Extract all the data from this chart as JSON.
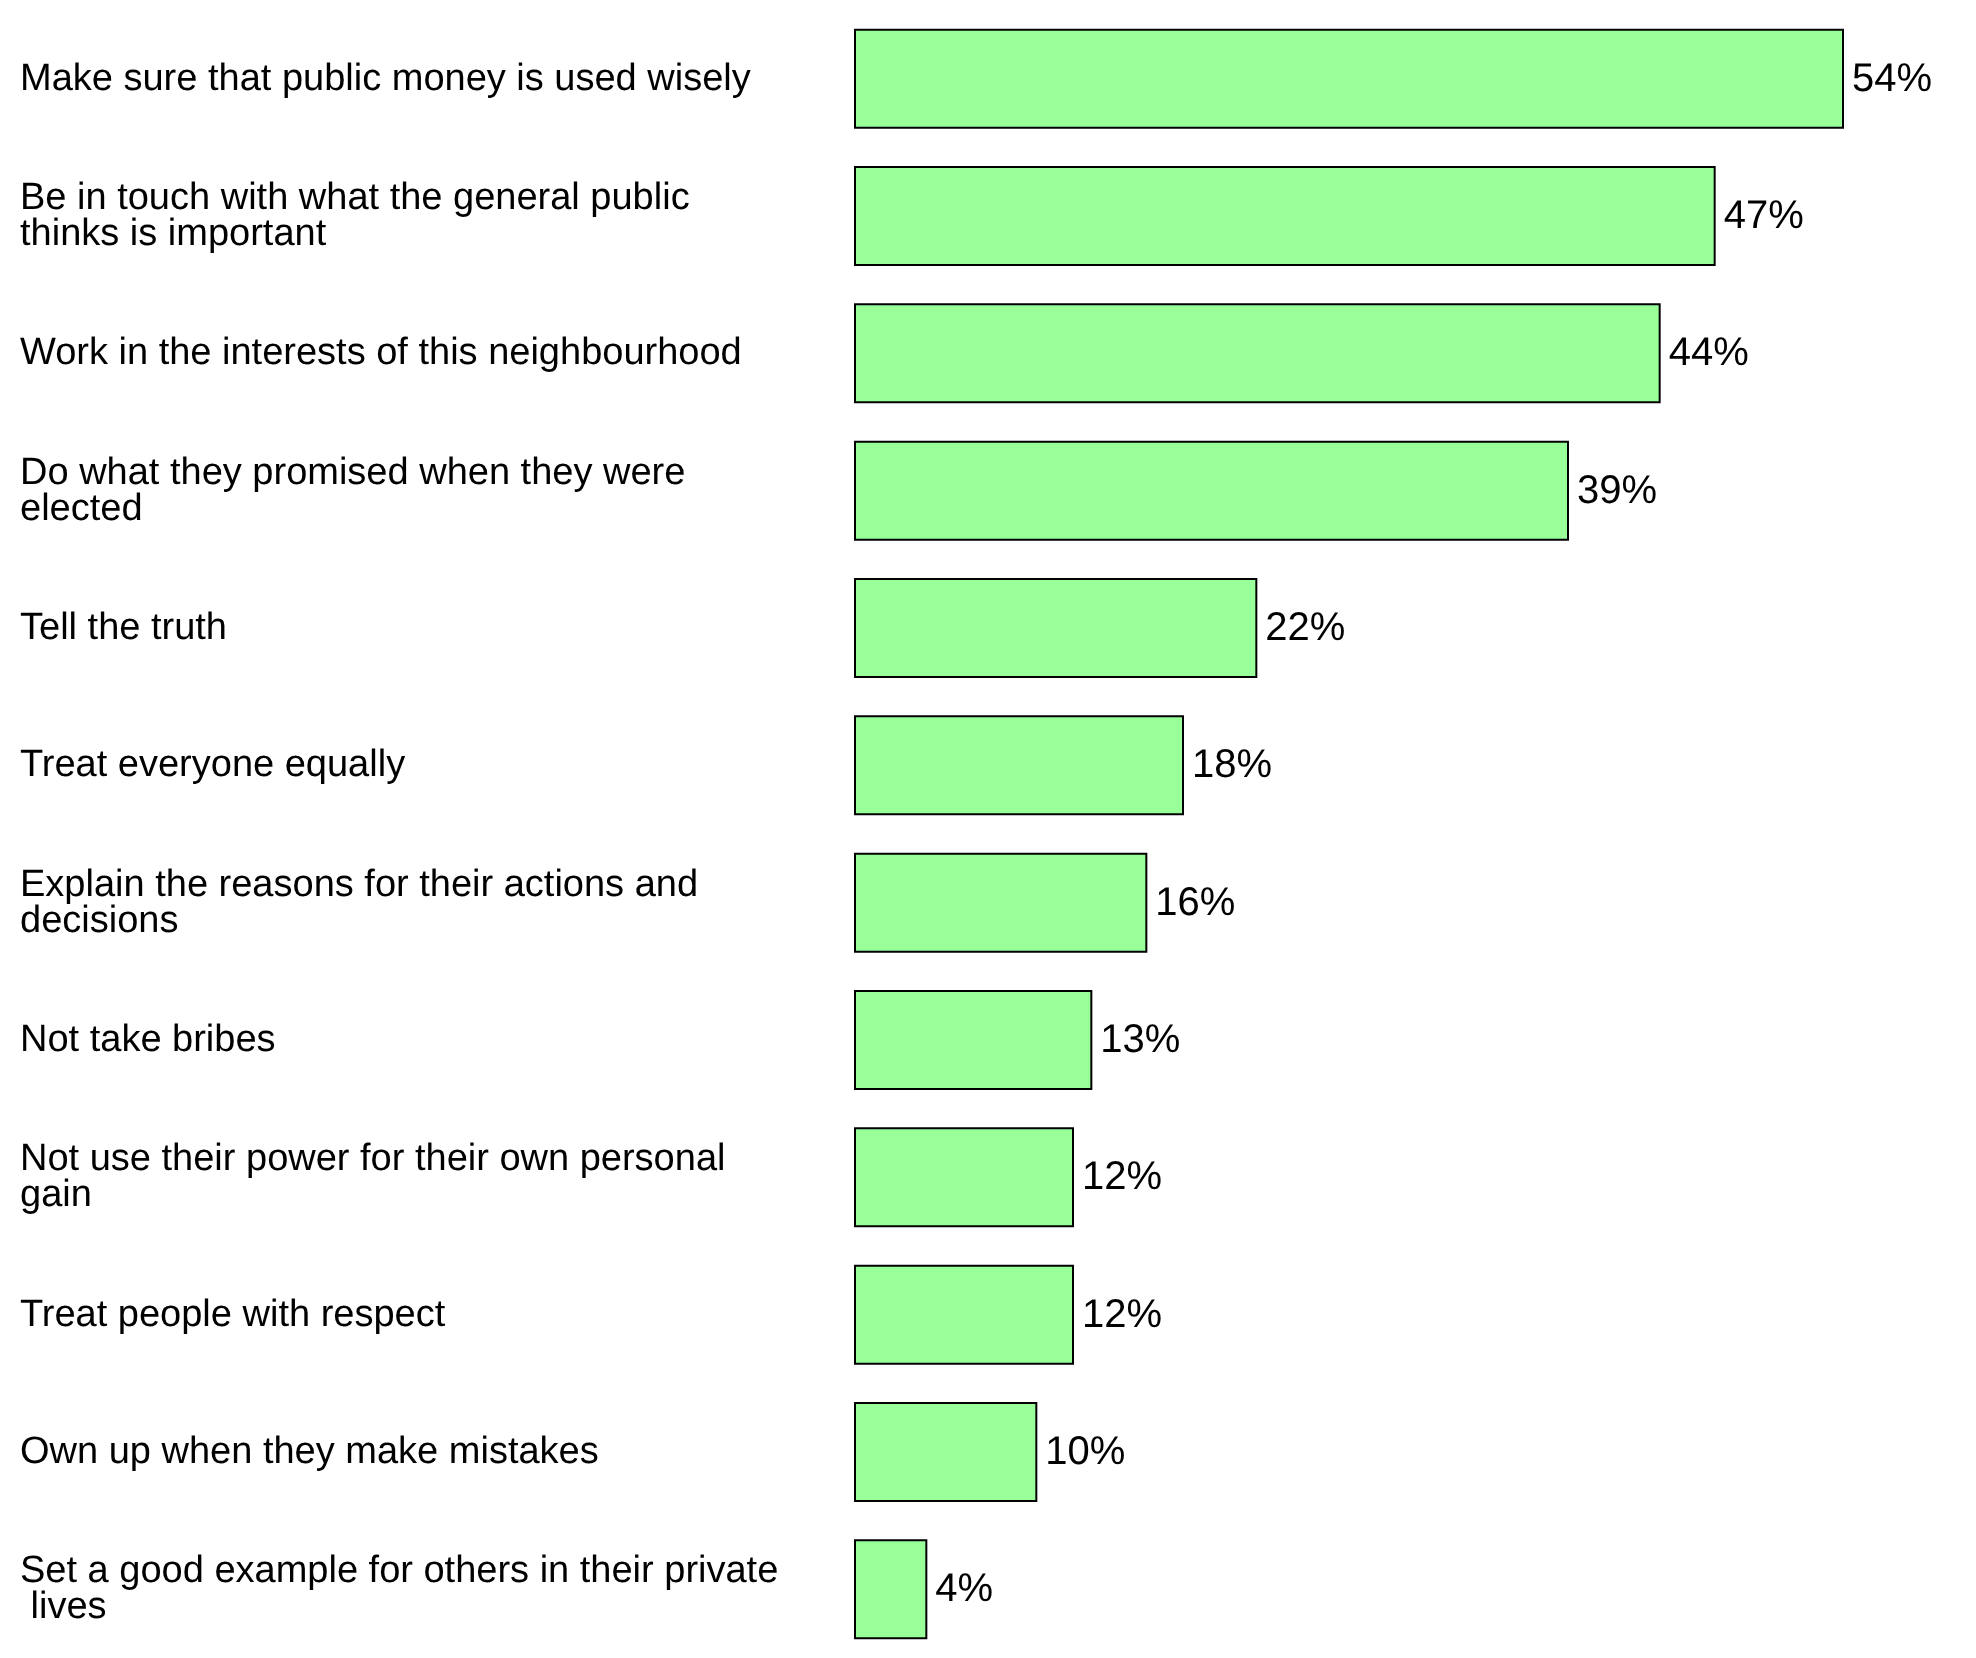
{
  "chart_data": {
    "type": "bar",
    "orientation": "horizontal",
    "color": "#99ff99",
    "categories": [
      "Make sure that public money is used wisely",
      "Be in touch with what the general public thinks is important",
      "Work in the interests of this neighbourhood",
      "Do what they promised when they were elected",
      "Tell the truth",
      "Treat everyone equally",
      "Explain the reasons for their actions and decisions",
      "Not take bribes",
      "Not use their power for their own personal gain",
      "Treat people with respect",
      "Own up when they make mistakes",
      "Set a good example for others in their private lives"
    ],
    "values": [
      54,
      47,
      44,
      39,
      22,
      18,
      16,
      13,
      12,
      12,
      10,
      4
    ],
    "value_labels": [
      "54%",
      "47%",
      "44%",
      "39%",
      "22%",
      "18%",
      "16%",
      "13%",
      "12%",
      "12%",
      "10%",
      "4%"
    ]
  }
}
